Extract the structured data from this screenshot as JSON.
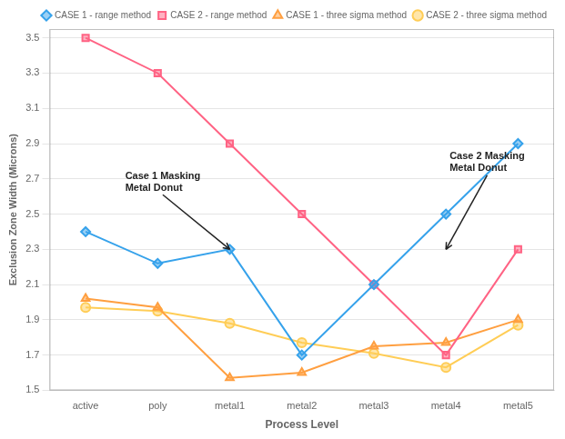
{
  "chart_data": {
    "type": "line",
    "categories": [
      "active",
      "poly",
      "metal1",
      "metal2",
      "metal3",
      "metal4",
      "metal5"
    ],
    "series": [
      {
        "name": "CASE 1 - range method",
        "values": [
          2.4,
          2.22,
          2.3,
          1.7,
          2.1,
          2.5,
          2.9
        ],
        "marker": "diamond"
      },
      {
        "name": "CASE 2 - range method",
        "values": [
          3.5,
          3.3,
          2.9,
          2.5,
          2.1,
          1.7,
          2.3
        ],
        "marker": "square"
      },
      {
        "name": "CASE 1 - three sigma method",
        "values": [
          2.02,
          1.97,
          1.57,
          1.6,
          1.75,
          1.77,
          1.9
        ],
        "marker": "triangle"
      },
      {
        "name": "CASE 2 - three sigma method",
        "values": [
          1.97,
          1.95,
          1.88,
          1.77,
          1.71,
          1.63,
          1.87
        ],
        "marker": "circle"
      }
    ],
    "xlabel": "Process Level",
    "ylabel": "Exclusion Zone Width (Microns)",
    "ylim": [
      1.5,
      3.55
    ],
    "yticks": [
      1.5,
      1.7,
      1.9,
      2.1,
      2.3,
      2.5,
      2.7,
      2.9,
      3.1,
      3.3,
      3.5
    ],
    "grid": "y",
    "legend": "upper right",
    "annotations": [
      {
        "text": "Case 1 Masking\nMetal Donut",
        "xy": [
          2,
          2.3
        ],
        "xytext": [
          0.55,
          2.62
        ]
      },
      {
        "text": "Case 2 Masking\nMetal Donut",
        "xy": [
          5,
          2.3
        ],
        "xytext": [
          5.05,
          2.73
        ]
      }
    ]
  }
}
